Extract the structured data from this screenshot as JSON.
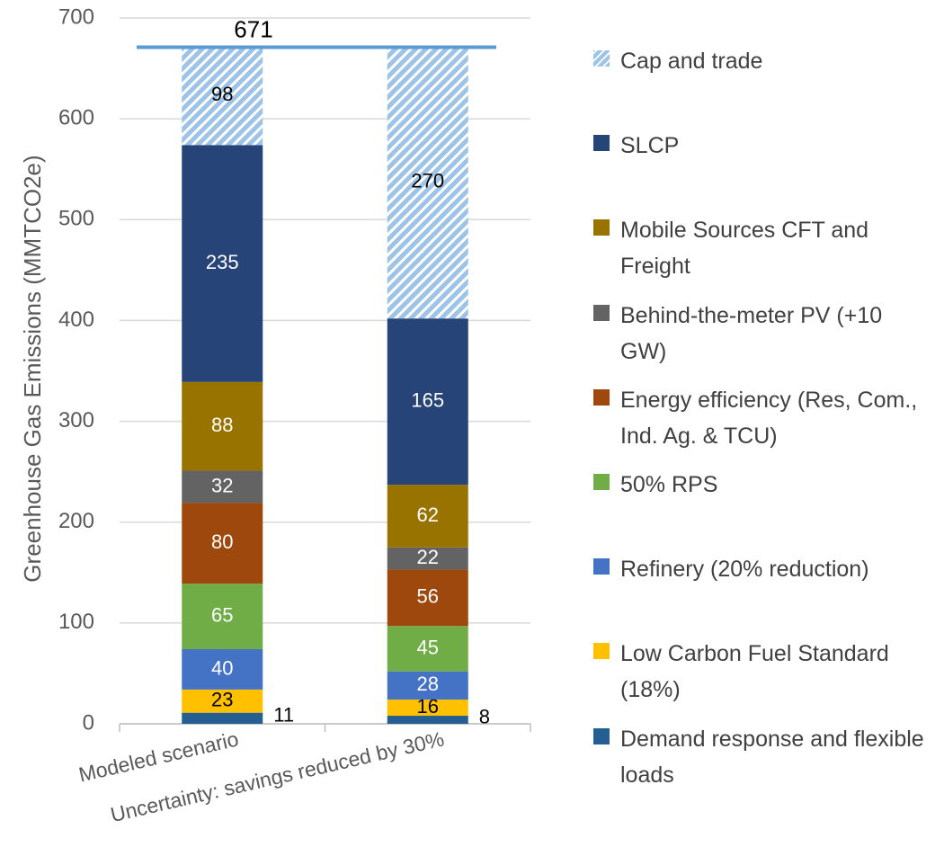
{
  "chart_data": {
    "type": "stacked_bar",
    "y_label": "Greenhouse Gas Emissions (MMTCO2e)",
    "categories": [
      "Modeled scenario",
      "Uncertainty: savings reduced by 30%"
    ],
    "series": [
      {
        "name": "Demand response and flexible loads",
        "color": "#255e91",
        "values": [
          11,
          8
        ]
      },
      {
        "name": "Low Carbon Fuel Standard (18%)",
        "color": "#ffc000",
        "values": [
          23,
          16
        ]
      },
      {
        "name": "Refinery (20%  reduction)",
        "color": "#4472c4",
        "values": [
          40,
          28
        ]
      },
      {
        "name": "50% RPS",
        "color": "#70ad47",
        "values": [
          65,
          45
        ]
      },
      {
        "name": "Energy efficiency (Res, Com., Ind. Ag. & TCU)",
        "color": "#9e480e",
        "values": [
          80,
          56
        ]
      },
      {
        "name": "Behind-the-meter PV (+10 GW)",
        "color": "#636363",
        "values": [
          32,
          22
        ]
      },
      {
        "name": "Mobile Sources CFT and Freight",
        "color": "#997300",
        "values": [
          88,
          62
        ]
      },
      {
        "name": "SLCP",
        "color": "#264478",
        "values": [
          235,
          165
        ]
      },
      {
        "name": "Cap and trade",
        "color": "#9dc3e6",
        "hatch": true,
        "values": [
          98,
          270
        ]
      }
    ],
    "cap_value": 671,
    "cap_color": "#5b9bd5",
    "ylim": [
      0,
      700
    ],
    "yticks": [
      0,
      100,
      200,
      300,
      400,
      500,
      600,
      700
    ],
    "grid": true
  }
}
